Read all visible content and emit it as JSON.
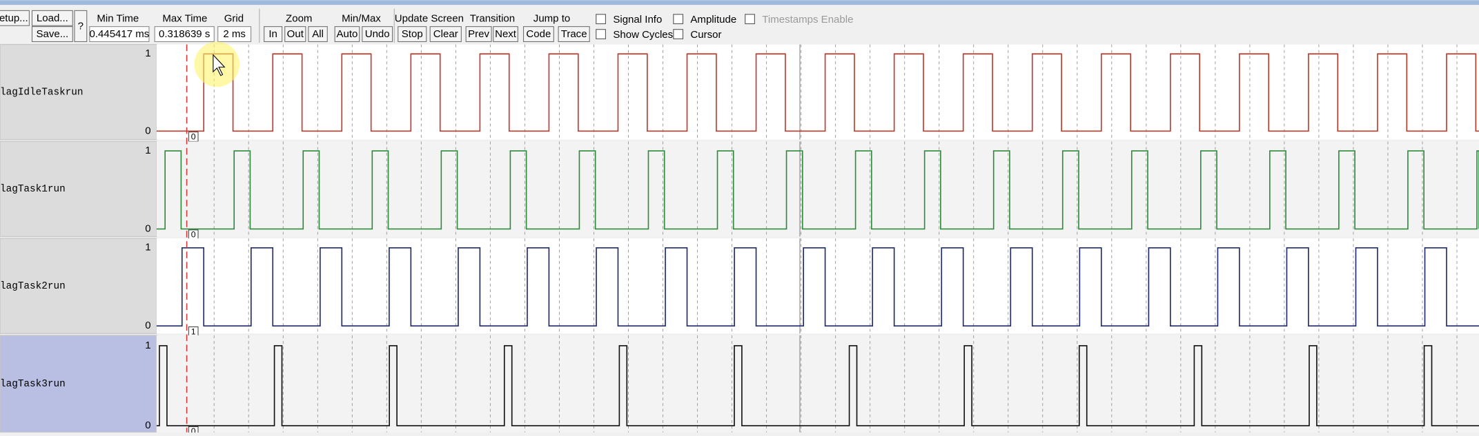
{
  "toolbar": {
    "setup": "etup...",
    "load": "Load...",
    "save": "Save...",
    "help": "?",
    "min_time": {
      "label": "Min Time",
      "value": "0.445417 ms"
    },
    "max_time": {
      "label": "Max Time",
      "value": "0.318639 s"
    },
    "grid": {
      "label": "Grid",
      "value": "2 ms"
    },
    "zoom": {
      "label": "Zoom",
      "buttons": [
        "In",
        "Out",
        "All"
      ]
    },
    "min_max": {
      "label": "Min/Max",
      "buttons": [
        "Auto",
        "Undo"
      ]
    },
    "update_screen": {
      "label": "Update Screen",
      "buttons": [
        "Stop",
        "Clear"
      ]
    },
    "transition": {
      "label": "Transition",
      "buttons": [
        "Prev",
        "Next"
      ]
    },
    "jump_to": {
      "label": "Jump to",
      "buttons": [
        "Code",
        "Trace"
      ]
    },
    "checkboxes": [
      "Signal Info",
      "Amplitude",
      "Timestamps Enable",
      "Show Cycles",
      "Cursor"
    ]
  },
  "signals": [
    {
      "name": "lagIdleTaskrun",
      "high": "1",
      "low": "0",
      "cursor_value": "0"
    },
    {
      "name": "lagTask1run",
      "high": "1",
      "low": "0",
      "cursor_value": "0"
    },
    {
      "name": "lagTask2run",
      "high": "1",
      "low": "0",
      "cursor_value": "1"
    },
    {
      "name": "lagTask3run",
      "high": "1",
      "low": "0",
      "cursor_value": "0"
    }
  ]
}
